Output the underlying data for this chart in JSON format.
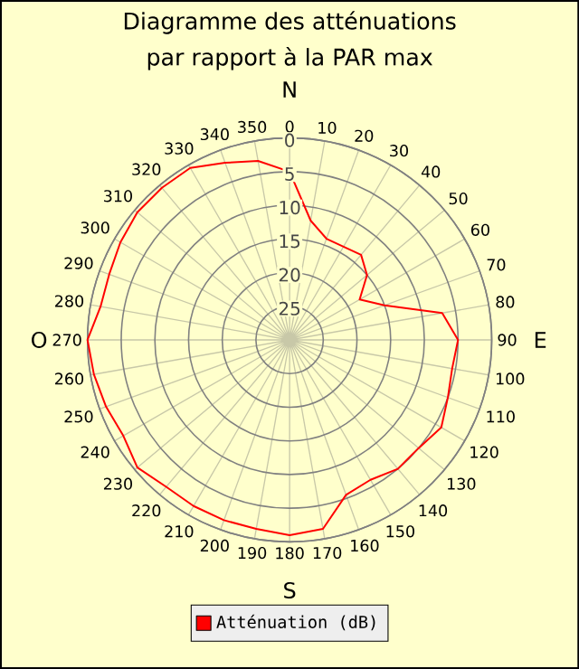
{
  "chart_data": {
    "type": "radar",
    "title": "Diagramme des atténuations",
    "subtitle": "par rapport à la PAR max",
    "categories": [
      "0",
      "10",
      "20",
      "30",
      "40",
      "50",
      "60",
      "70",
      "80",
      "90",
      "100",
      "110",
      "120",
      "130",
      "140",
      "150",
      "160",
      "170",
      "180",
      "190",
      "200",
      "210",
      "220",
      "230",
      "240",
      "250",
      "260",
      "270",
      "280",
      "290",
      "300",
      "310",
      "320",
      "330",
      "340",
      "350"
    ],
    "series": [
      {
        "name": "Atténuation (dB)",
        "color": "#ff0000",
        "values": [
          5,
          12,
          14,
          14,
          13.5,
          15,
          18,
          15,
          7,
          5,
          5.5,
          5,
          4,
          5,
          5,
          6,
          5.5,
          1.5,
          1,
          1.5,
          1.5,
          1.5,
          1.5,
          0.5,
          1.5,
          1,
          0.5,
          0,
          1.5,
          1.5,
          1,
          0.5,
          0.5,
          0.5,
          2,
          3
        ]
      }
    ],
    "ylim": [
      30,
      0
    ],
    "yticks": [
      0,
      5,
      10,
      15,
      20,
      25
    ],
    "grid": true,
    "legend": "bottom",
    "marker": "none",
    "line_style": "solid",
    "annotations": [
      "N",
      "E",
      "S",
      "O"
    ]
  }
}
